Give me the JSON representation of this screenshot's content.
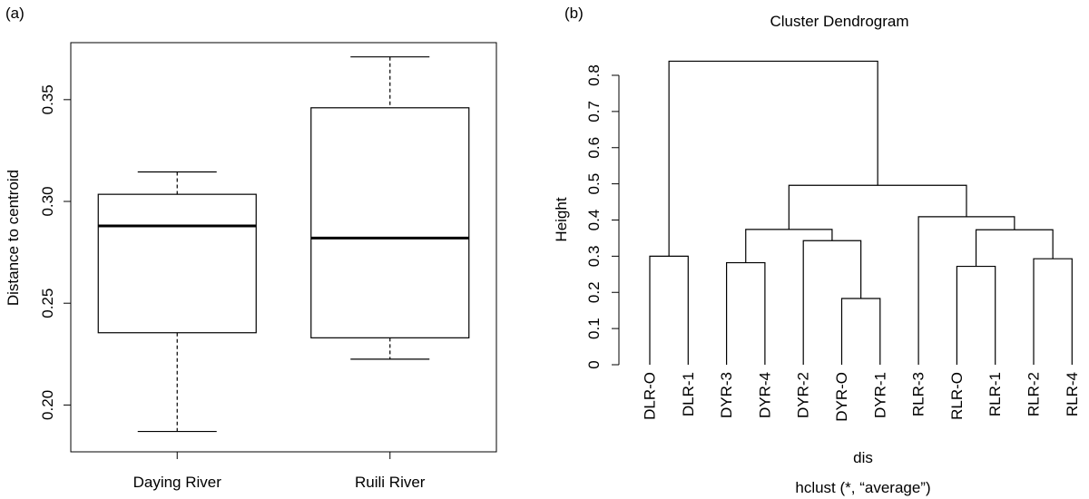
{
  "chart_data": [
    {
      "type": "box",
      "panel_label": "(a)",
      "title": "",
      "xlabel": "",
      "ylabel": "Distance to centroid",
      "ylim": [
        0.177,
        0.378
      ],
      "yticks": [
        0.2,
        0.25,
        0.3,
        0.35
      ],
      "ytick_labels": [
        "0.20",
        "0.25",
        "0.30",
        "0.35"
      ],
      "categories": [
        "Daying River",
        "Ruili River"
      ],
      "boxes": [
        {
          "name": "Daying River",
          "whisker_low": 0.187,
          "q1": 0.2355,
          "median": 0.288,
          "q3": 0.3035,
          "whisker_high": 0.3145
        },
        {
          "name": "Ruili River",
          "whisker_low": 0.2225,
          "q1": 0.233,
          "median": 0.282,
          "q3": 0.346,
          "whisker_high": 0.371
        }
      ]
    },
    {
      "type": "dendrogram",
      "panel_label": "(b)",
      "title": "Cluster Dendrogram",
      "xlabel": "dis",
      "subtitle": "hclust (*, “average”)",
      "ylabel": "Height",
      "ylim": [
        0,
        0.84
      ],
      "yticks": [
        0,
        0.1,
        0.2,
        0.3,
        0.4,
        0.5,
        0.6,
        0.7,
        0.8
      ],
      "ytick_labels": [
        "0",
        "0.1",
        "0.2",
        "0.3",
        "0.4",
        "0.5",
        "0.6",
        "0.7",
        "0.8"
      ],
      "leaves": [
        "DLR-O",
        "DLR-1",
        "DYR-3",
        "DYR-4",
        "DYR-2",
        "DYR-O",
        "DYR-1",
        "RLR-3",
        "RLR-O",
        "RLR-1",
        "RLR-2",
        "RLR-4"
      ],
      "merges": [
        {
          "id": "m1",
          "left": "DYR-O",
          "right": "DYR-1",
          "height": 0.183
        },
        {
          "id": "m2",
          "left": "RLR-O",
          "right": "RLR-1",
          "height": 0.272
        },
        {
          "id": "m3",
          "left": "DYR-3",
          "right": "DYR-4",
          "height": 0.282
        },
        {
          "id": "m4",
          "left": "RLR-2",
          "right": "RLR-4",
          "height": 0.293
        },
        {
          "id": "m5",
          "left": "DLR-O",
          "right": "DLR-1",
          "height": 0.3
        },
        {
          "id": "m6",
          "left": "DYR-2",
          "right": "m1",
          "height": 0.343
        },
        {
          "id": "m7",
          "left": "m2",
          "right": "m4",
          "height": 0.373
        },
        {
          "id": "m8",
          "left": "m3",
          "right": "m6",
          "height": 0.374
        },
        {
          "id": "m9",
          "left": "RLR-3",
          "right": "m7",
          "height": 0.409
        },
        {
          "id": "m10",
          "left": "m8",
          "right": "m9",
          "height": 0.496
        },
        {
          "id": "m11",
          "left": "m5",
          "right": "m10",
          "height": 0.839
        }
      ]
    }
  ]
}
